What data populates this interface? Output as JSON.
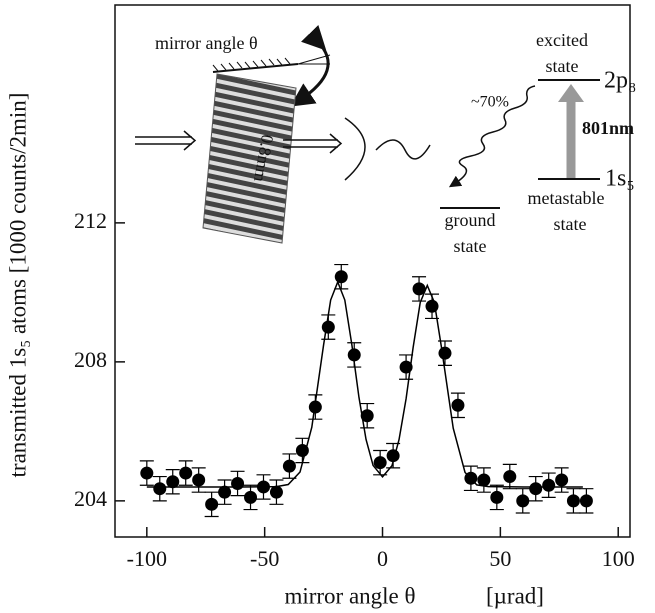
{
  "chart_data": {
    "type": "scatter",
    "x_label": "mirror angle θ",
    "x_unit_label": "[µrad]",
    "y_label": "transmitted 1s₅ atoms [1000 counts/2min]",
    "xlim": [
      -113.5,
      105
    ],
    "ylim": [
      202.96,
      218.27
    ],
    "xticks": [
      -100,
      -50,
      0,
      50,
      100
    ],
    "yticks": [
      204,
      208,
      212
    ],
    "series": [
      {
        "type": "scatter",
        "color": "#000000",
        "x": [
          -100,
          -94.5,
          -89,
          -83.5,
          -78,
          -72.5,
          -67,
          -61.5,
          -56,
          -50.5,
          -45,
          -39.5,
          -34,
          -28.5,
          -23,
          -17.5,
          -12,
          -6.5,
          -1,
          4.5,
          10,
          15.5,
          21,
          26.5,
          32,
          37.5,
          43,
          48.5,
          54,
          59.5,
          65,
          70.5,
          76,
          81,
          86.5
        ],
        "values": [
          204.8,
          204.35,
          204.55,
          204.8,
          204.6,
          203.9,
          204.25,
          204.5,
          204.1,
          204.4,
          204.25,
          205.0,
          205.45,
          206.7,
          209.0,
          210.45,
          208.2,
          206.45,
          205.1,
          205.3,
          207.85,
          210.1,
          209.6,
          208.25,
          206.75,
          204.65,
          204.6,
          204.1,
          204.7,
          204.0,
          204.35,
          204.45,
          204.6,
          204.0,
          204.0
        ],
        "errors": [
          0.35,
          0.35,
          0.35,
          0.35,
          0.35,
          0.35,
          0.35,
          0.35,
          0.35,
          0.35,
          0.35,
          0.35,
          0.35,
          0.35,
          0.35,
          0.35,
          0.35,
          0.35,
          0.35,
          0.35,
          0.35,
          0.35,
          0.35,
          0.35,
          0.35,
          0.35,
          0.35,
          0.35,
          0.35,
          0.35,
          0.35,
          0.35,
          0.35,
          0.35,
          0.35
        ]
      },
      {
        "type": "line",
        "color": "#000000",
        "x": [
          -100,
          -60,
          -45,
          -40,
          -35,
          -30,
          -25,
          -22,
          -19,
          -16,
          -13,
          -10,
          -7,
          -4,
          0,
          4,
          7,
          10,
          13,
          16,
          19,
          22,
          25,
          30,
          35,
          40,
          45,
          60,
          85
        ],
        "values": [
          204.4,
          204.4,
          204.41,
          204.47,
          204.83,
          206.12,
          208.49,
          209.78,
          210.3,
          209.78,
          208.49,
          206.98,
          205.77,
          205.02,
          204.69,
          205.01,
          205.76,
          206.94,
          208.42,
          209.71,
          210.2,
          209.71,
          208.42,
          206.09,
          204.82,
          204.46,
          204.41,
          204.4,
          204.4
        ]
      }
    ],
    "annotations": [
      "mirror angle θ",
      "0.8mm",
      "excited",
      "state",
      "2p₈",
      "~70%",
      "801nm",
      "1s₅",
      "metastable",
      "state",
      "ground",
      "state"
    ]
  }
}
